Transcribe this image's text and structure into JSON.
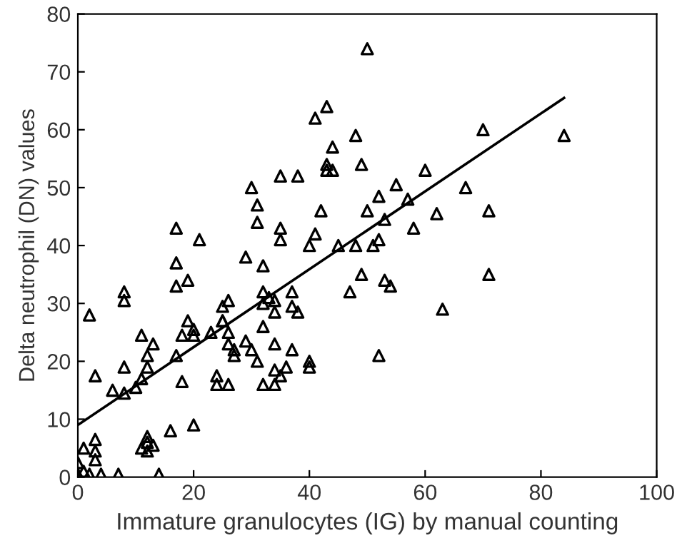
{
  "chart_data": {
    "type": "scatter",
    "xlabel": "Immature granulocytes (IG) by manual counting",
    "ylabel": "Delta neutrophil (DN) values",
    "xlim": [
      0,
      100
    ],
    "ylim": [
      0,
      80
    ],
    "xticks": [
      0,
      20,
      40,
      60,
      80,
      100
    ],
    "yticks": [
      0,
      10,
      20,
      30,
      40,
      50,
      60,
      70,
      80
    ],
    "grid": false,
    "legend": false,
    "series": [
      {
        "marker": "triangle",
        "color": "#000000",
        "x": [
          50,
          43,
          41,
          48,
          44,
          49,
          43,
          43,
          44,
          35,
          38,
          30,
          31,
          42,
          50,
          31,
          35,
          35,
          41,
          17,
          21,
          40,
          45,
          48,
          29,
          70,
          84,
          60,
          55,
          67,
          52,
          57,
          53,
          62,
          71,
          58,
          52,
          51,
          49,
          53,
          54,
          47,
          71,
          63,
          52,
          17,
          17,
          19,
          8,
          8,
          32,
          2,
          3,
          11,
          13,
          12,
          12,
          11,
          10,
          8,
          6,
          8,
          17,
          18,
          19,
          18,
          20,
          20,
          23,
          25,
          26,
          25,
          25,
          26,
          26,
          27,
          27,
          29,
          30,
          31,
          24,
          24,
          26,
          32,
          33,
          32,
          34,
          34,
          37,
          37,
          38,
          32,
          34,
          37,
          34,
          36,
          35,
          32,
          34,
          40,
          40,
          16,
          20,
          12,
          12,
          11,
          13,
          12,
          1,
          3,
          3,
          3,
          0,
          0,
          1,
          2,
          4,
          7,
          14
        ],
        "values": [
          74,
          64,
          62,
          59,
          57,
          54,
          54,
          53,
          53,
          52,
          52,
          50,
          47,
          46,
          46,
          44,
          43,
          41,
          42,
          43,
          41,
          40,
          40,
          40,
          38,
          60,
          59,
          53,
          50.5,
          50,
          48.5,
          48,
          44.5,
          45.5,
          46,
          43,
          41,
          40,
          35,
          34,
          33,
          32,
          35,
          29,
          21,
          37,
          33,
          34,
          32,
          30.5,
          36.5,
          28,
          17.5,
          24.5,
          23,
          21,
          19,
          17,
          15.5,
          19,
          15,
          14.5,
          21,
          16.5,
          27,
          24.5,
          25.5,
          24.5,
          25,
          29.5,
          30.5,
          27,
          27,
          25,
          23,
          22,
          21,
          23.5,
          22,
          20,
          17.5,
          16,
          16,
          32,
          31,
          30,
          30.5,
          28.5,
          32,
          29.5,
          28.5,
          26,
          23,
          22,
          18.5,
          19,
          17.5,
          16,
          16,
          20,
          19,
          8,
          9,
          7,
          6,
          5,
          5.5,
          4.5,
          5,
          6.5,
          4.5,
          3,
          2.5,
          0.5,
          1,
          0.5,
          0.5,
          0.5,
          0.5
        ]
      },
      {
        "type": "line",
        "color": "#000000",
        "x": [
          0,
          84
        ],
        "values": [
          9,
          65.5
        ],
        "line_style": "solid"
      }
    ]
  }
}
